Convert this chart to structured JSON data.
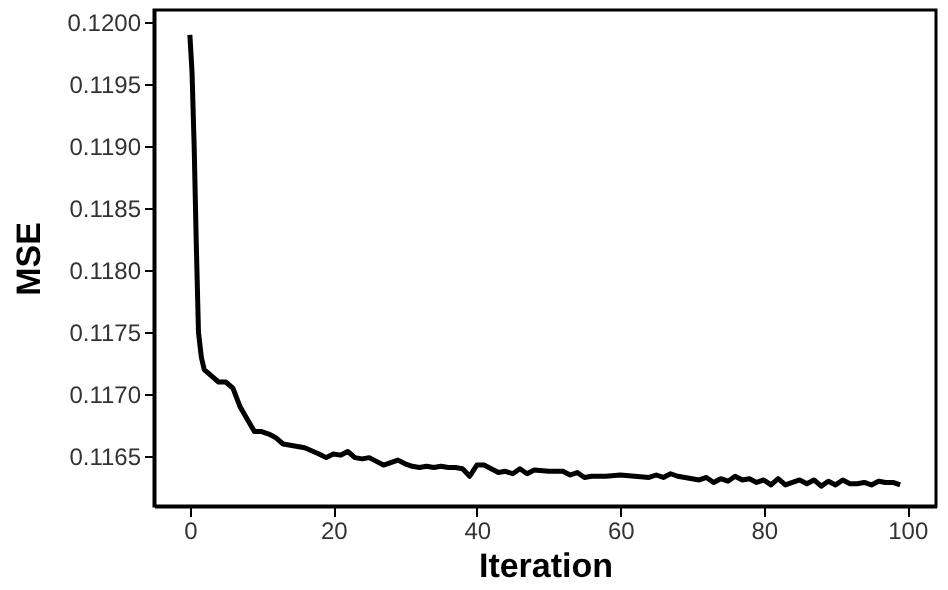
{
  "chart_data": {
    "type": "line",
    "xlabel": "Iteration",
    "ylabel": "MSE",
    "x": [
      0,
      0.3,
      0.6,
      0.9,
      1.2,
      1.6,
      2,
      3,
      4,
      5,
      6,
      7,
      8,
      9,
      10,
      11,
      12,
      13,
      15,
      16,
      18,
      19,
      20,
      21,
      22,
      23,
      24,
      25,
      26,
      27,
      28,
      29,
      30,
      31,
      32,
      33,
      34,
      35,
      36,
      37,
      38,
      39,
      40,
      41,
      42,
      43,
      44,
      45,
      46,
      47,
      48,
      50,
      52,
      53,
      54,
      55,
      56,
      58,
      60,
      62,
      64,
      65,
      66,
      67,
      68,
      70,
      71,
      72,
      73,
      74,
      75,
      76,
      77,
      78,
      79,
      80,
      81,
      82,
      83,
      84,
      85,
      86,
      87,
      88,
      89,
      90,
      91,
      92,
      93,
      94,
      95,
      96,
      97,
      98,
      99
    ],
    "series": [
      {
        "color": "#000000",
        "values": [
          0.1199,
          0.1196,
          0.119,
          0.1182,
          0.1175,
          0.1173,
          0.1172,
          0.11715,
          0.1171,
          0.1171,
          0.11705,
          0.1169,
          0.1168,
          0.1167,
          0.1167,
          0.11668,
          0.11665,
          0.1166,
          0.11658,
          0.11657,
          0.11652,
          0.11649,
          0.11652,
          0.11651,
          0.11654,
          0.11649,
          0.11648,
          0.11649,
          0.11646,
          0.11643,
          0.11645,
          0.11647,
          0.11644,
          0.11642,
          0.11641,
          0.11642,
          0.11641,
          0.11642,
          0.11641,
          0.11641,
          0.1164,
          0.11634,
          0.11643,
          0.11643,
          0.1164,
          0.11637,
          0.11638,
          0.11636,
          0.1164,
          0.11636,
          0.11639,
          0.11638,
          0.11638,
          0.11635,
          0.11637,
          0.11633,
          0.11634,
          0.11634,
          0.11635,
          0.11634,
          0.11633,
          0.11635,
          0.11633,
          0.11636,
          0.11634,
          0.11632,
          0.11631,
          0.11633,
          0.11629,
          0.11632,
          0.1163,
          0.11634,
          0.11631,
          0.11632,
          0.11629,
          0.11631,
          0.11627,
          0.11632,
          0.11627,
          0.11629,
          0.11631,
          0.11628,
          0.11631,
          0.11626,
          0.1163,
          0.11627,
          0.11631,
          0.11628,
          0.11628,
          0.11629,
          0.11627,
          0.1163,
          0.11629,
          0.11629,
          0.11627
        ]
      }
    ],
    "xlim": [
      -5,
      104
    ],
    "xticks": [
      0,
      20,
      40,
      60,
      80,
      100
    ],
    "ylim": [
      0.1161,
      0.1201
    ],
    "yticks": [
      {
        "value": 0.1165,
        "label": "0.1165"
      },
      {
        "value": 0.117,
        "label": "0.1170"
      },
      {
        "value": 0.1175,
        "label": "0.1175"
      },
      {
        "value": 0.118,
        "label": "0.1180"
      },
      {
        "value": 0.1185,
        "label": "0.1185"
      },
      {
        "value": 0.119,
        "label": "0.1190"
      },
      {
        "value": 0.1195,
        "label": "0.1195"
      },
      {
        "value": 0.12,
        "label": "0.1200"
      }
    ],
    "grid": false,
    "marker": "none",
    "line_style": "solid"
  }
}
